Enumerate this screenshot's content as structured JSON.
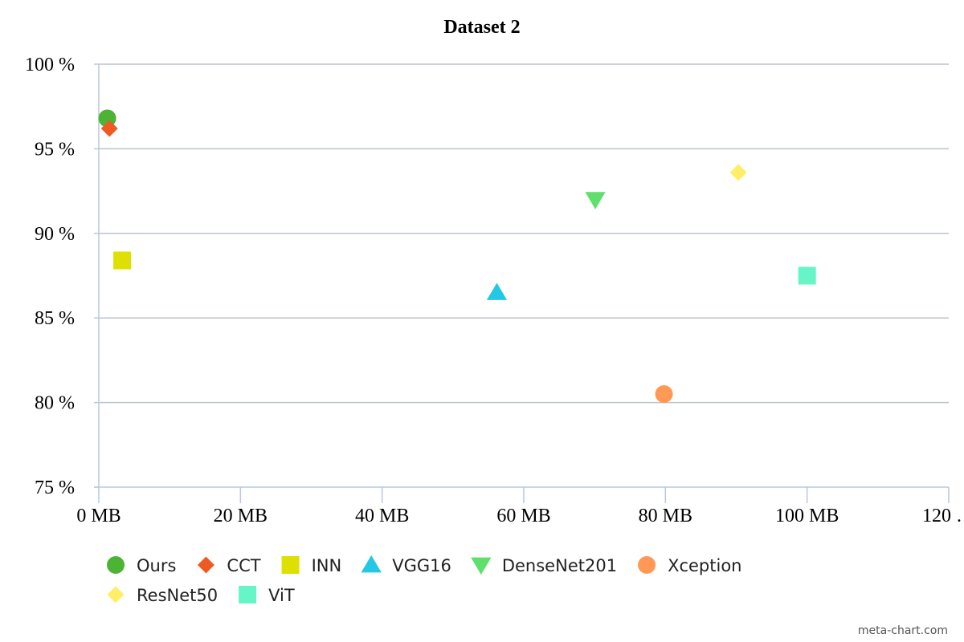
{
  "chart_data": {
    "type": "scatter",
    "title": "Dataset 2",
    "xlabel": "",
    "ylabel": "",
    "x_unit": "MB",
    "y_unit": "%",
    "xlim": [
      0,
      120
    ],
    "ylim": [
      75,
      100
    ],
    "x_ticks": [
      "0 MB",
      "20 MB",
      "40 MB",
      "60 MB",
      "80 MB",
      "100 MB",
      "120 …"
    ],
    "y_ticks": [
      "100 %",
      "95 %",
      "90 %",
      "85 %",
      "80 %",
      "75 %"
    ],
    "grid": "horizontal",
    "legend_position": "bottom-left",
    "series": [
      {
        "name": "Ours",
        "marker": "circle",
        "color": "#4db335",
        "points": [
          {
            "x": 1.2,
            "y": 96.8
          }
        ]
      },
      {
        "name": "CCT",
        "marker": "diamond",
        "color": "#ee5a20",
        "points": [
          {
            "x": 1.5,
            "y": 96.2
          }
        ]
      },
      {
        "name": "INN",
        "marker": "square",
        "color": "#dde000",
        "points": [
          {
            "x": 3.3,
            "y": 88.4
          }
        ]
      },
      {
        "name": "VGG16",
        "marker": "triangle-up",
        "color": "#24c8e4",
        "points": [
          {
            "x": 56.2,
            "y": 86.5
          }
        ]
      },
      {
        "name": "DenseNet201",
        "marker": "triangle-down",
        "color": "#5fdf6b",
        "points": [
          {
            "x": 70.1,
            "y": 92.0
          }
        ]
      },
      {
        "name": "Xception",
        "marker": "circle",
        "color": "#ff9955",
        "points": [
          {
            "x": 79.8,
            "y": 80.5
          }
        ]
      },
      {
        "name": "ResNet50",
        "marker": "diamond",
        "color": "#ffee66",
        "points": [
          {
            "x": 90.3,
            "y": 93.6
          }
        ]
      },
      {
        "name": "ViT",
        "marker": "square",
        "color": "#66f5c6",
        "points": [
          {
            "x": 100.0,
            "y": 87.5
          }
        ]
      }
    ]
  },
  "credit": "meta-chart.com"
}
